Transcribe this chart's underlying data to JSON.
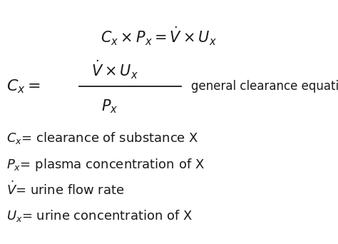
{
  "background_color": "#ffffff",
  "text_color": "#1a1a1a",
  "figsize": [
    4.74,
    3.42
  ],
  "dpi": 100,
  "eq1": "$C_x \\times P_x = \\dot{V} \\times U_x$",
  "eq2_lhs": "$C_x = $",
  "eq2_num": "$\\dot{V} \\times U_x$",
  "eq2_den": "$P_x$",
  "eq2_label": "general clearance equation",
  "def1": "$C_x$= clearance of substance X",
  "def2": "$P_x$= plasma concentration of X",
  "def3": "$\\dot{V}$= urine flow rate",
  "def4": "$U_x$= urine concentration of X",
  "fontsize_eq1": 15,
  "fontsize_eq2": 15,
  "fontsize_def": 13,
  "fontsize_label": 12
}
